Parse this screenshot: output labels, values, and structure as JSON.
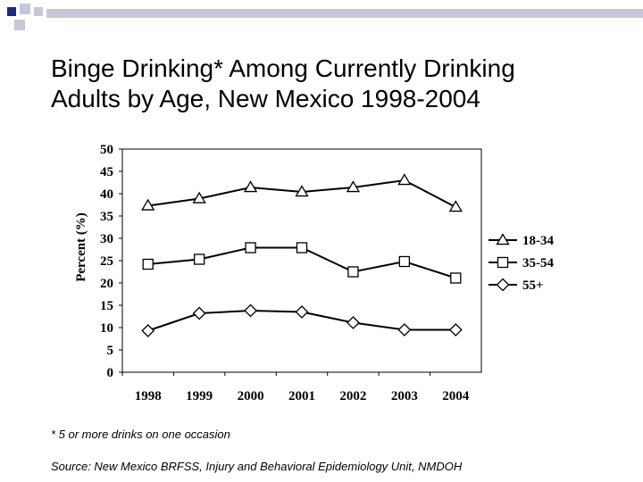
{
  "slide": {
    "title_line1": "Binge Drinking* Among Currently Drinking",
    "title_line2": "Adults by Age, New Mexico 1998-2004",
    "footnote": "* 5 or more drinks on one occasion",
    "source": "Source: New Mexico BRFSS, Injury and Behavioral Epidemiology Unit, NMDOH"
  },
  "chart_data": {
    "type": "line",
    "title": "",
    "xlabel": "",
    "ylabel": "Percent (%)",
    "categories": [
      "1998",
      "1999",
      "2000",
      "2001",
      "2002",
      "2003",
      "2004"
    ],
    "ylim": [
      0,
      50
    ],
    "yticks": [
      "0",
      "5",
      "10",
      "15",
      "20",
      "25",
      "30",
      "35",
      "40",
      "45",
      "50"
    ],
    "legend_position": "right",
    "series": [
      {
        "name": "18-34",
        "marker": "triangle",
        "values": [
          37.3,
          38.9,
          41.4,
          40.4,
          41.4,
          43.0,
          37.0
        ]
      },
      {
        "name": "35-54",
        "marker": "square",
        "values": [
          24.2,
          25.3,
          27.9,
          27.9,
          22.5,
          24.8,
          21.1
        ]
      },
      {
        "name": "55+",
        "marker": "diamond",
        "values": [
          9.3,
          13.2,
          13.8,
          13.5,
          11.1,
          9.5,
          9.5
        ]
      }
    ]
  },
  "colors": {
    "decor_dark": "#1f2a7a",
    "decor_light": "#c4c8da",
    "line": "#000000"
  }
}
